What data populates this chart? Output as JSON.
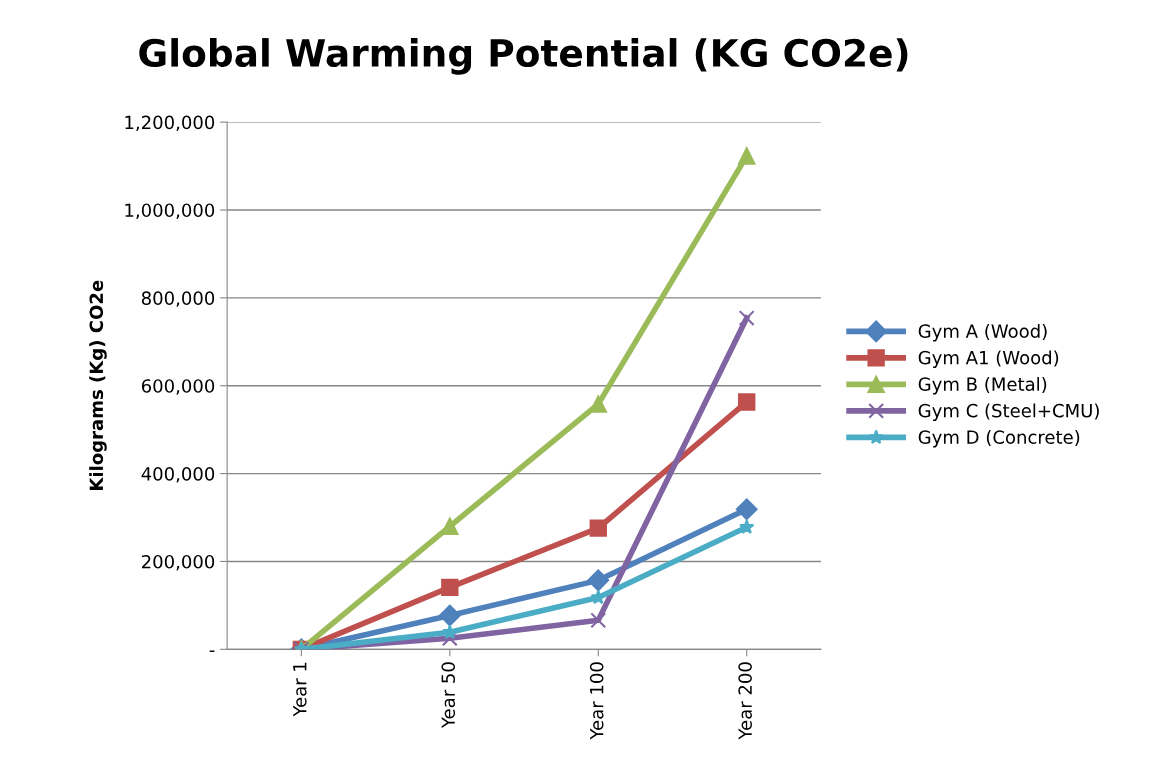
{
  "chart_data": {
    "type": "line",
    "title": "Global Warming Potential (KG CO2e)",
    "ylabel": "Kilograms (Kg) CO2e",
    "categories": [
      "Year 1",
      "Year 50",
      "Year 100",
      "Year 200"
    ],
    "series": [
      {
        "name": "Gym A (Wood)",
        "color": "#4f81bd",
        "marker": "diamond",
        "values": [
          0,
          77000,
          157000,
          319000
        ]
      },
      {
        "name": "Gym A1 (Wood)",
        "color": "#c0504d",
        "marker": "square",
        "values": [
          0,
          141000,
          276000,
          563000
        ]
      },
      {
        "name": "Gym B (Metal)",
        "color": "#9bbb59",
        "marker": "triangle",
        "values": [
          0,
          280000,
          558000,
          1123000
        ]
      },
      {
        "name": "Gym C (Steel+CMU)",
        "color": "#8064a2",
        "marker": "cross",
        "values": [
          0,
          25000,
          66000,
          754000
        ]
      },
      {
        "name": "Gym D (Concrete)",
        "color": "#4bacc6",
        "marker": "star",
        "values": [
          0,
          39000,
          118000,
          278000
        ]
      }
    ],
    "ylim": [
      0,
      1200000
    ],
    "yticks": [
      {
        "value": 0,
        "label": "-"
      },
      {
        "value": 200000,
        "label": "200,000"
      },
      {
        "value": 400000,
        "label": "400,000"
      },
      {
        "value": 600000,
        "label": "600,000"
      },
      {
        "value": 800000,
        "label": "800,000"
      },
      {
        "value": 1000000,
        "label": "1,000,000"
      },
      {
        "value": 1200000,
        "label": "1,200,000"
      }
    ],
    "grid": "y",
    "legend": "right",
    "line_style": "solid"
  }
}
